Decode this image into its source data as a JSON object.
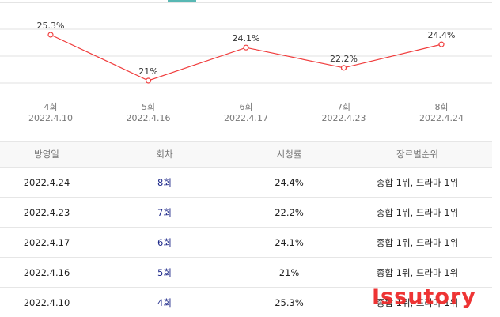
{
  "chart_data": {
    "type": "line",
    "categories": [
      "4회",
      "5회",
      "6회",
      "7회",
      "8회"
    ],
    "dates": [
      "2022.4.10",
      "2022.4.16",
      "2022.4.17",
      "2022.4.23",
      "2022.4.24"
    ],
    "series": [
      {
        "values": [
          25.3,
          21,
          24.1,
          22.2,
          24.4
        ],
        "labels": [
          "25.3%",
          "21%",
          "24.1%",
          "22.2%",
          "24.4%"
        ],
        "color": "#f03c3c"
      }
    ],
    "grid": true
  },
  "table": {
    "headers": [
      "방영일",
      "회차",
      "시청률",
      "장르별순위"
    ],
    "rows": [
      {
        "date": "2022.4.24",
        "episode": "8회",
        "rating": "24.4%",
        "rank": "종합 1위, 드라마 1위"
      },
      {
        "date": "2022.4.23",
        "episode": "7회",
        "rating": "22.2%",
        "rank": "종합 1위, 드라마 1위"
      },
      {
        "date": "2022.4.17",
        "episode": "6회",
        "rating": "24.1%",
        "rank": "종합 1위, 드라마 1위"
      },
      {
        "date": "2022.4.16",
        "episode": "5회",
        "rating": "21%",
        "rank": "종합 1위, 드라마 1위"
      },
      {
        "date": "2022.4.10",
        "episode": "4회",
        "rating": "25.3%",
        "rank": "종합 1위, 드라마 1위"
      }
    ]
  },
  "watermark": "Issutory",
  "colors": {
    "accent_tab": "#58b8b4",
    "series_line": "#f03c3c",
    "episode_link": "#1f2a8a",
    "watermark": "#ee2a2a"
  }
}
